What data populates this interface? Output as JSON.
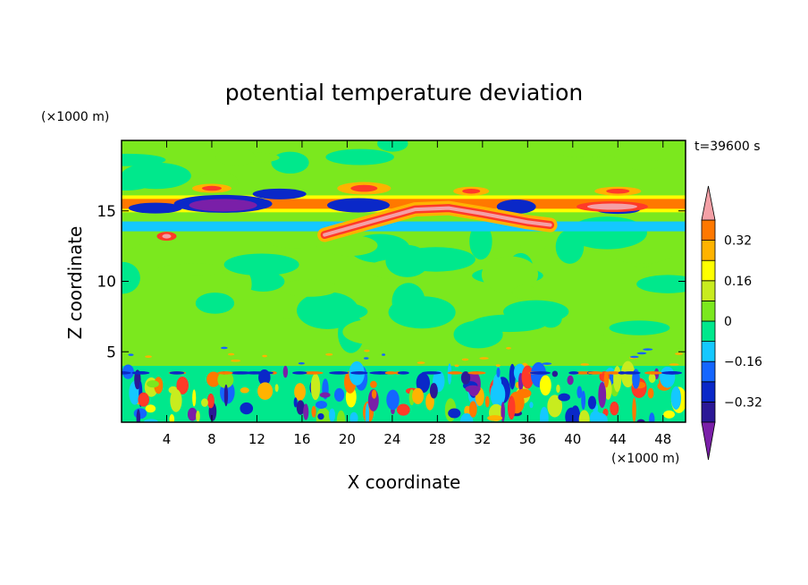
{
  "chart_data": {
    "type": "heatmap",
    "title": "potential temperature deviation",
    "time_label": "t=39600 s",
    "xlabel": "X coordinate",
    "ylabel": "Z coordinate",
    "x_unit": "(×1000 m)",
    "y_unit": "(×1000 m)",
    "xlim": [
      0,
      50
    ],
    "ylim": [
      0,
      20
    ],
    "x_ticks": [
      4,
      8,
      12,
      16,
      20,
      24,
      28,
      32,
      36,
      40,
      44,
      48
    ],
    "y_ticks": [
      5,
      10,
      15
    ],
    "colorbar": {
      "levels": [
        -0.48,
        -0.4,
        -0.32,
        -0.24,
        -0.16,
        -0.08,
        0,
        0.08,
        0.16,
        0.24,
        0.32,
        0.4,
        0.48
      ],
      "colors": [
        "#7a1fa8",
        "#2b1896",
        "#0a28c8",
        "#1466ff",
        "#14c8ff",
        "#00e88c",
        "#7be81e",
        "#c8ec1e",
        "#ffff00",
        "#ffb300",
        "#ff7800",
        "#ff3a28",
        "#f4a0a6"
      ],
      "labels": [
        {
          "value": 0.32,
          "text": "0.32"
        },
        {
          "value": 0.16,
          "text": "0.16"
        },
        {
          "value": 0,
          "text": "0"
        },
        {
          "value": -0.16,
          "text": "−0.16"
        },
        {
          "value": -0.32,
          "text": "−0.32"
        }
      ]
    },
    "features": [
      {
        "name": "upper warm band",
        "x_range": [
          0,
          50
        ],
        "z_range": [
          14.5,
          16.5
        ],
        "value": 0.4
      },
      {
        "name": "cold core",
        "x_range": [
          6,
          12
        ],
        "z_range": [
          15,
          16
        ],
        "value": -0.45
      },
      {
        "name": "sloping warm layer",
        "x_range": [
          18,
          38
        ],
        "z_range": [
          13,
          15.5
        ],
        "value": 0.48
      },
      {
        "name": "cold layer",
        "x_range": [
          0,
          50
        ],
        "z_range": [
          13.5,
          14.2
        ],
        "value": -0.1
      },
      {
        "name": "boundary layer turbulence",
        "x_range": [
          0,
          50
        ],
        "z_range": [
          0,
          4
        ],
        "value": -0.2
      }
    ]
  }
}
